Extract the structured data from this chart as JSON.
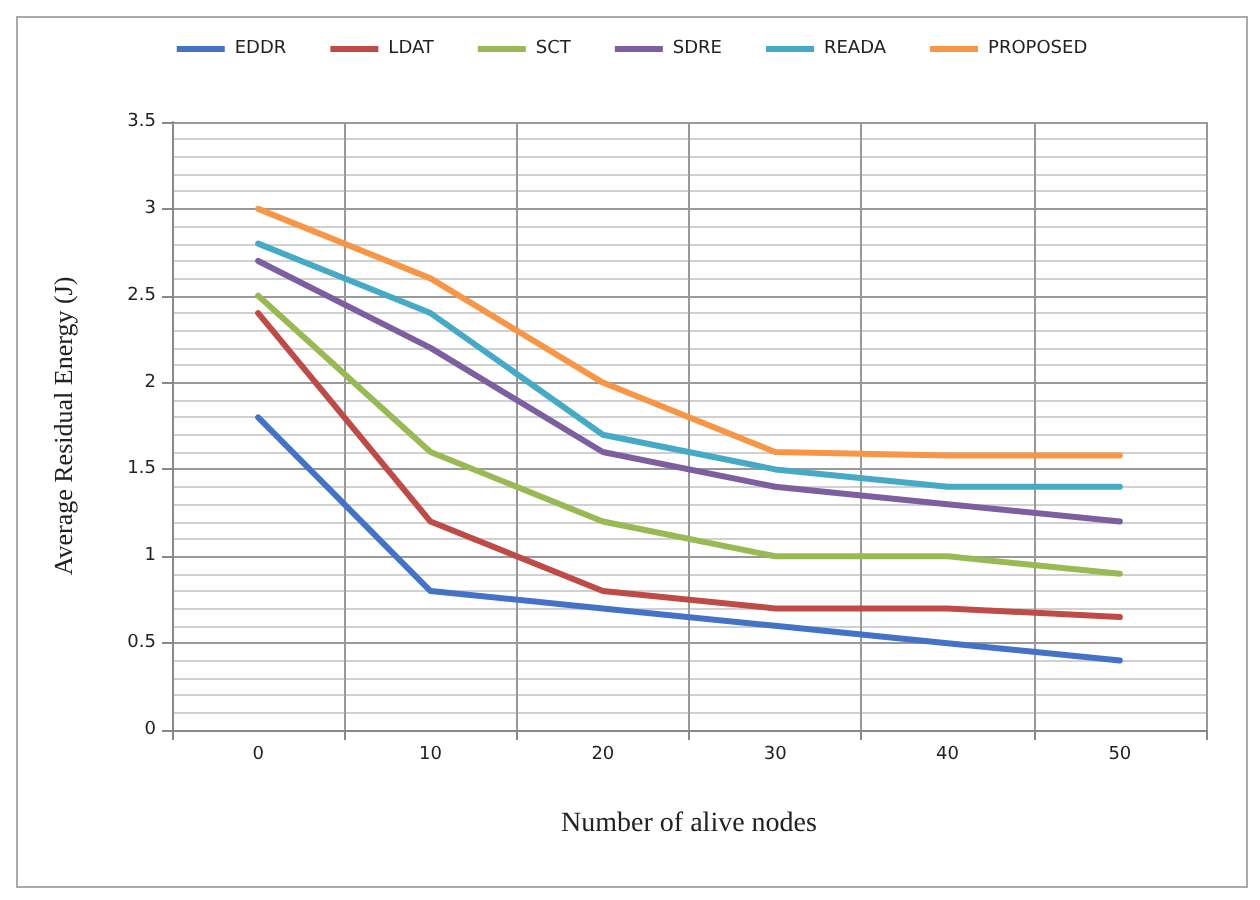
{
  "chart_data": {
    "type": "line",
    "xlabel": "Number of alive nodes",
    "ylabel": "Average Residual Energy (J)",
    "categories": [
      "0",
      "10",
      "20",
      "30",
      "40",
      "50"
    ],
    "series": [
      {
        "name": "EDDR",
        "color": "#4472c4",
        "values": [
          1.8,
          0.8,
          0.7,
          0.6,
          0.5,
          0.4
        ]
      },
      {
        "name": "LDAT",
        "color": "#be4b48",
        "values": [
          2.4,
          1.2,
          0.8,
          0.7,
          0.7,
          0.65
        ]
      },
      {
        "name": "SCT",
        "color": "#98b954",
        "values": [
          2.5,
          1.6,
          1.2,
          1.0,
          1.0,
          0.9
        ]
      },
      {
        "name": "SDRE",
        "color": "#7d5fa0",
        "values": [
          2.7,
          2.2,
          1.6,
          1.4,
          1.3,
          1.2
        ]
      },
      {
        "name": "READA",
        "color": "#46aac5",
        "values": [
          2.8,
          2.4,
          1.7,
          1.5,
          1.4,
          1.4
        ]
      },
      {
        "name": "PROPOSED",
        "color": "#f79646",
        "values": [
          3.0,
          2.6,
          2.0,
          1.6,
          1.58,
          1.58
        ]
      }
    ],
    "ylim": [
      0,
      3.5
    ],
    "yticks": [
      0,
      0.5,
      1,
      1.5,
      2,
      2.5,
      3,
      3.5
    ],
    "grid": true,
    "legend": "top",
    "marker": "none",
    "line_style": "solid"
  }
}
